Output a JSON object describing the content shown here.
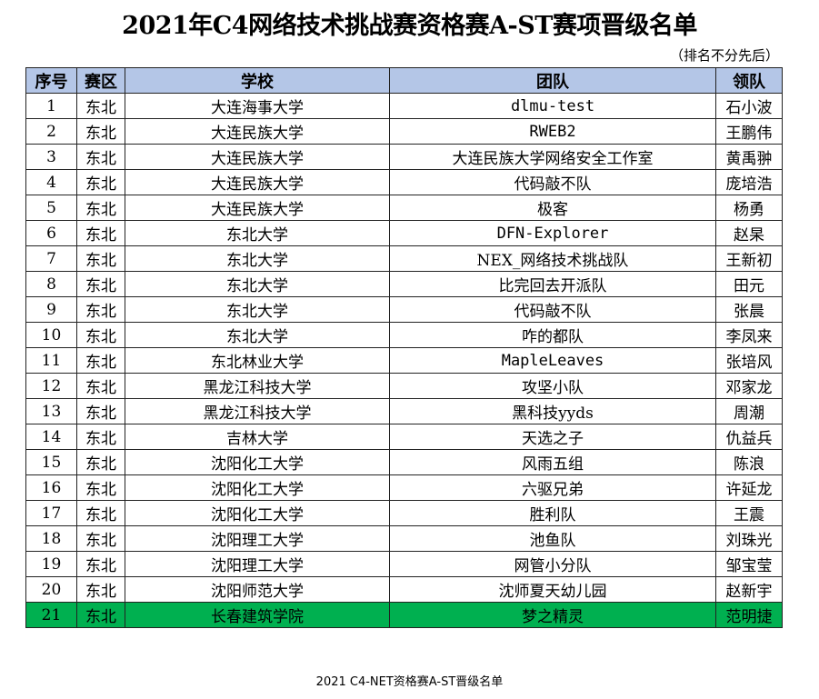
{
  "title": "2021年C4网络技术挑战赛资格赛A-ST赛项晋级名单",
  "note": "（排名不分先后）",
  "headers": [
    "序号",
    "赛区",
    "学校",
    "团队",
    "领队"
  ],
  "highlight_color": "#00b050",
  "header_color": "#b4c6e7",
  "rows": [
    [
      "1",
      "东北",
      "大连海事大学",
      "dlmu-test",
      "石小波"
    ],
    [
      "2",
      "东北",
      "大连民族大学",
      "RWEB2",
      "王鹏伟"
    ],
    [
      "3",
      "东北",
      "大连民族大学",
      "大连民族大学网络安全工作室",
      "黄禹翀"
    ],
    [
      "4",
      "东北",
      "大连民族大学",
      "代码敲不队",
      "庞培浩"
    ],
    [
      "5",
      "东北",
      "大连民族大学",
      "极客",
      "杨勇"
    ],
    [
      "6",
      "东北",
      "东北大学",
      "DFN-Explorer",
      "赵杲"
    ],
    [
      "7",
      "东北",
      "东北大学",
      "NEX_网络技术挑战队",
      "王新初"
    ],
    [
      "8",
      "东北",
      "东北大学",
      "比完回去开派队",
      "田元"
    ],
    [
      "9",
      "东北",
      "东北大学",
      "代码敲不队",
      "张晨"
    ],
    [
      "10",
      "东北",
      "东北大学",
      "咋的都队",
      "李凤来"
    ],
    [
      "11",
      "东北",
      "东北林业大学",
      "MapleLeaves",
      "张培风"
    ],
    [
      "12",
      "东北",
      "黑龙江科技大学",
      "攻坚小队",
      "邓家龙"
    ],
    [
      "13",
      "东北",
      "黑龙江科技大学",
      "黑科技yyds",
      "周潮"
    ],
    [
      "14",
      "东北",
      "吉林大学",
      "天选之子",
      "仇益兵"
    ],
    [
      "15",
      "东北",
      "沈阳化工大学",
      "风雨五组",
      "陈浪"
    ],
    [
      "16",
      "东北",
      "沈阳化工大学",
      "六驱兄弟",
      "许延龙"
    ],
    [
      "17",
      "东北",
      "沈阳化工大学",
      "胜利队",
      "王震"
    ],
    [
      "18",
      "东北",
      "沈阳理工大学",
      "池鱼队",
      "刘珠光"
    ],
    [
      "19",
      "东北",
      "沈阳理工大学",
      "网管小分队",
      "邹宝莹"
    ],
    [
      "20",
      "东北",
      "沈阳师范大学",
      "沈师夏天幼儿园",
      "赵新宇"
    ],
    [
      "21",
      "东北",
      "长春建筑学院",
      "梦之精灵",
      "范明捷"
    ]
  ],
  "highlighted_row": "21",
  "footer": "2021 C4-NET资格赛A-ST晋级名单"
}
